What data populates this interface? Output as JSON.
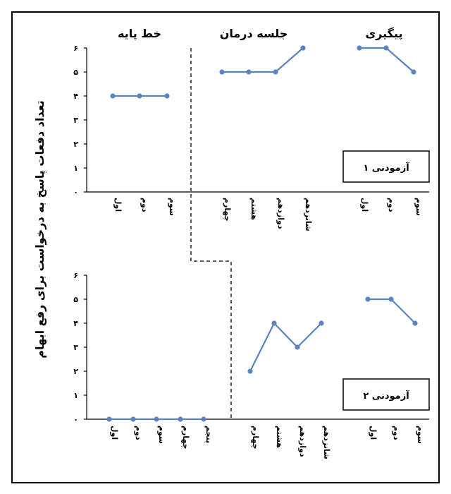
{
  "phases": [
    "خط پایه",
    "جلسه درمان",
    "پیگیری"
  ],
  "y_axis_label": "تعداد دفعات پاسخ به درخواست برای رفع ابهام",
  "y_ticks": [
    "۰",
    "۱",
    "۲",
    "۳",
    "۴",
    "۵",
    "۶"
  ],
  "chart_data": [
    {
      "type": "line",
      "panel_label": "آزمودنی ۱",
      "ylim": [
        0,
        6
      ],
      "baseline": {
        "categories": [
          "اول",
          "دوم",
          "سوم"
        ],
        "values": [
          4,
          4,
          4
        ]
      },
      "treatment": {
        "categories": [
          "چهارم",
          "هشتم",
          "دوازدهم",
          "شانزدهم"
        ],
        "values": [
          5,
          5,
          5,
          6
        ]
      },
      "followup": {
        "categories": [
          "اول",
          "دوم",
          "سوم"
        ],
        "values": [
          6,
          6,
          5
        ]
      }
    },
    {
      "type": "line",
      "panel_label": "آزمودنی ۲",
      "ylim": [
        0,
        6
      ],
      "baseline": {
        "categories": [
          "اول",
          "دوم",
          "سوم",
          "چهارم",
          "پنجم"
        ],
        "values": [
          0,
          0,
          0,
          0,
          0
        ]
      },
      "treatment": {
        "categories": [
          "چهارم",
          "هشتم",
          "دوازدهم",
          "شانزدهم"
        ],
        "values": [
          2,
          4,
          3,
          4
        ]
      },
      "followup": {
        "categories": [
          "اول",
          "دوم",
          "سوم"
        ],
        "values": [
          5,
          5,
          4
        ]
      }
    }
  ],
  "colors": {
    "series": "#5b84c0",
    "axis": "#000000"
  }
}
